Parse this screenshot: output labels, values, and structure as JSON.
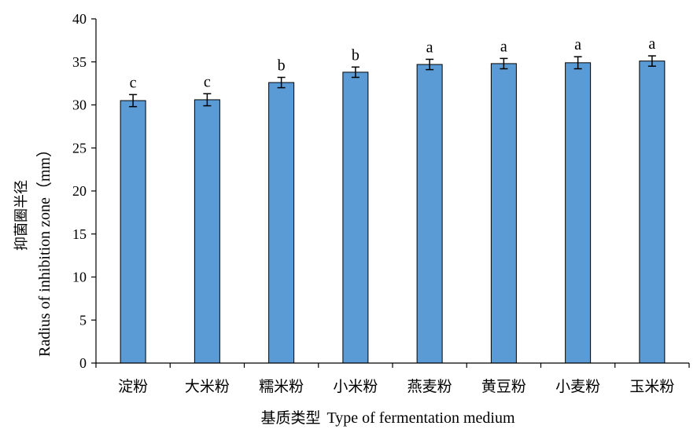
{
  "chart_data": {
    "type": "bar",
    "xlabel_cn": "基质类型",
    "xlabel_en": "Type of fermentation medium",
    "ylabel_cn": "抑菌圈半径",
    "ylabel_en": "Radius of inhibition zone（mm）",
    "categories": [
      "淀粉",
      "大米粉",
      "糯米粉",
      "小米粉",
      "燕麦粉",
      "黄豆粉",
      "小麦粉",
      "玉米粉"
    ],
    "values": [
      30.5,
      30.6,
      32.6,
      33.8,
      34.7,
      34.8,
      34.9,
      35.1
    ],
    "errors": [
      0.7,
      0.7,
      0.6,
      0.6,
      0.6,
      0.6,
      0.7,
      0.6
    ],
    "significance": [
      "c",
      "c",
      "b",
      "b",
      "a",
      "a",
      "a",
      "a"
    ],
    "ylim": [
      0,
      40
    ],
    "yticks": [
      "0",
      "5",
      "10",
      "15",
      "20",
      "25",
      "30",
      "35",
      "40"
    ],
    "bar_color": "#5b9bd5",
    "grid": false,
    "legend": "none"
  }
}
